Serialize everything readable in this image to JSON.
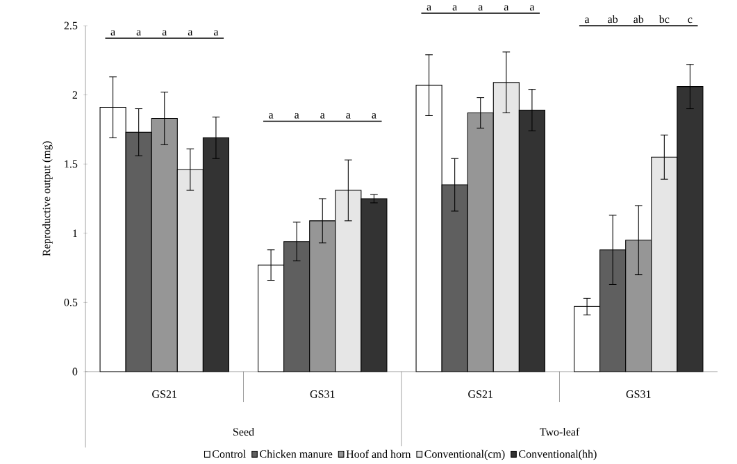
{
  "chart_data": {
    "type": "bar",
    "ylabel": "Reproductive output (mg)",
    "categories": [
      "GS21",
      "GS31",
      "GS21",
      "GS31"
    ],
    "series": [
      {
        "name": "Control",
        "color": "#ffffff",
        "values": [
          1.91,
          0.77,
          2.07,
          0.47
        ],
        "errors": [
          0.22,
          0.11,
          0.22,
          0.06
        ]
      },
      {
        "name": "Chicken manure",
        "color": "#5f5f5f",
        "values": [
          1.73,
          0.94,
          1.35,
          0.88
        ],
        "errors": [
          0.17,
          0.14,
          0.19,
          0.25
        ]
      },
      {
        "name": "Hoof and horn",
        "color": "#969696",
        "values": [
          1.83,
          1.09,
          1.87,
          0.95
        ],
        "errors": [
          0.19,
          0.16,
          0.11,
          0.25
        ]
      },
      {
        "name": "Conventional(cm)",
        "color": "#e6e6e6",
        "values": [
          1.46,
          1.31,
          2.09,
          1.55
        ],
        "errors": [
          0.15,
          0.22,
          0.22,
          0.16
        ]
      },
      {
        "name": "Conventional(hh)",
        "color": "#333333",
        "values": [
          1.69,
          1.25,
          1.89,
          2.06
        ],
        "errors": [
          0.15,
          0.03,
          0.15,
          0.16
        ]
      }
    ],
    "ylim": [
      0,
      2.5
    ],
    "yticks": [
      0,
      0.5,
      1,
      1.5,
      2,
      2.5
    ],
    "legend": "bottom",
    "grid": false,
    "annotations": [
      "a",
      "a",
      "a",
      "a",
      "a",
      "a",
      "a",
      "a",
      "a",
      "a",
      "a",
      "a",
      "a",
      "a",
      "a",
      "a",
      "ab",
      "ab",
      "bc",
      "c",
      "Seed",
      "Two-leaf"
    ]
  }
}
